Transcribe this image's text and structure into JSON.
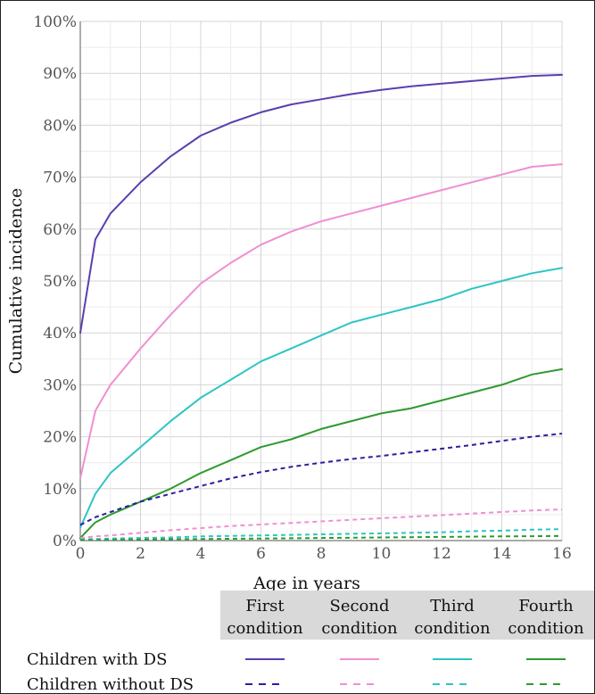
{
  "chart_data": {
    "type": "line",
    "xlabel": "Age in years",
    "ylabel": "Cumulative incidence",
    "xlim": [
      0,
      16
    ],
    "ylim": [
      0,
      100
    ],
    "x_ticks": [
      "0",
      "2",
      "4",
      "6",
      "8",
      "10",
      "12",
      "14",
      "16"
    ],
    "y_ticks": [
      "0%",
      "10%",
      "20%",
      "30%",
      "40%",
      "50%",
      "60%",
      "70%",
      "80%",
      "90%",
      "100%"
    ],
    "grid": true,
    "x": [
      0,
      0.5,
      1,
      2,
      3,
      4,
      5,
      6,
      7,
      8,
      9,
      10,
      11,
      12,
      13,
      14,
      15,
      16
    ],
    "series": [
      {
        "condition": "First condition",
        "group": "Children with DS",
        "color": "#5b3fae",
        "dash": "solid",
        "values": [
          40,
          58,
          63,
          69,
          74,
          78,
          80.5,
          82.5,
          84,
          85,
          86,
          86.8,
          87.5,
          88,
          88.5,
          89,
          89.5,
          89.7
        ]
      },
      {
        "condition": "Second condition",
        "group": "Children with DS",
        "color": "#ef8fd3",
        "dash": "solid",
        "values": [
          12,
          25,
          30,
          37,
          43.5,
          49.5,
          53.5,
          57,
          59.5,
          61.5,
          63,
          64.5,
          66,
          67.5,
          69,
          70.5,
          72,
          72.5
        ]
      },
      {
        "condition": "Third condition",
        "group": "Children with DS",
        "color": "#2ec4c4",
        "dash": "solid",
        "values": [
          2.5,
          9,
          13,
          18,
          23,
          27.5,
          31,
          34.5,
          37,
          39.5,
          42,
          43.5,
          45,
          46.5,
          48.5,
          50,
          51.5,
          52.5
        ]
      },
      {
        "condition": "Fourth condition",
        "group": "Children with DS",
        "color": "#2e9a2e",
        "dash": "solid",
        "values": [
          0.5,
          3.5,
          5,
          7.5,
          10,
          13,
          15.5,
          18,
          19.5,
          21.5,
          23,
          24.5,
          25.5,
          27,
          28.5,
          30,
          32,
          33
        ]
      },
      {
        "condition": "First condition",
        "group": "Children without DS",
        "color": "#2a1f9e",
        "dash": "dashed",
        "values": [
          3,
          4.5,
          5.5,
          7.5,
          9,
          10.5,
          12,
          13.2,
          14.2,
          15,
          15.7,
          16.3,
          17,
          17.7,
          18.4,
          19.2,
          20,
          20.6
        ]
      },
      {
        "condition": "Second condition",
        "group": "Children without DS",
        "color": "#ef8fd3",
        "dash": "dashed",
        "values": [
          0.5,
          0.8,
          1.0,
          1.5,
          2.0,
          2.4,
          2.8,
          3.1,
          3.4,
          3.7,
          4.0,
          4.3,
          4.6,
          4.9,
          5.2,
          5.5,
          5.8,
          6.0
        ]
      },
      {
        "condition": "Third condition",
        "group": "Children without DS",
        "color": "#2ec4c4",
        "dash": "dashed",
        "values": [
          0.2,
          0.3,
          0.4,
          0.5,
          0.6,
          0.8,
          0.9,
          1.0,
          1.1,
          1.2,
          1.3,
          1.4,
          1.5,
          1.6,
          1.8,
          1.9,
          2.1,
          2.2
        ]
      },
      {
        "condition": "Fourth condition",
        "group": "Children without DS",
        "color": "#2e9a2e",
        "dash": "dashed",
        "values": [
          0.1,
          0.1,
          0.15,
          0.2,
          0.25,
          0.3,
          0.35,
          0.4,
          0.45,
          0.5,
          0.55,
          0.6,
          0.65,
          0.7,
          0.75,
          0.8,
          0.85,
          0.9
        ]
      }
    ],
    "legend": {
      "columns": [
        {
          "line1": "First",
          "line2": "condition",
          "color": "#5b3fae"
        },
        {
          "line1": "Second",
          "line2": "condition",
          "color": "#ef8fd3"
        },
        {
          "line1": "Third",
          "line2": "condition",
          "color": "#2ec4c4"
        },
        {
          "line1": "Fourth",
          "line2": "condition",
          "color": "#2e9a2e"
        }
      ],
      "rows": [
        {
          "label": "Children with DS",
          "dash": "solid"
        },
        {
          "label": "Children without DS",
          "dash": "dashed"
        }
      ]
    }
  }
}
